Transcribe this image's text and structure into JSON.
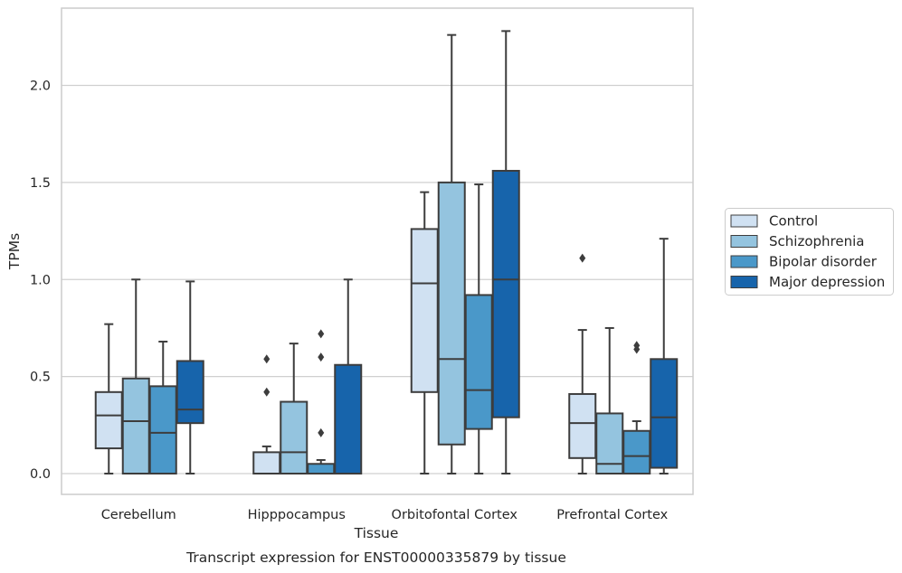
{
  "chart_data": {
    "type": "box",
    "title": "",
    "caption": "Transcript expression for ENST00000335879 by tissue",
    "xlabel": "Tissue",
    "ylabel": "TPMs",
    "ylim": [
      -0.11,
      2.41
    ],
    "yticks": [
      "0.0",
      "0.5",
      "1.0",
      "1.5",
      "2.0"
    ],
    "grid": "horizontal",
    "legend_position": "right",
    "categories": [
      "Cerebellum",
      "Hipppocampus",
      "Orbitofontal Cortex",
      "Prefrontal Cortex"
    ],
    "series": [
      {
        "name": "Control",
        "color": "#d0e1f2",
        "boxes": [
          {
            "whislo": 0.0,
            "q1": 0.13,
            "med": 0.3,
            "q3": 0.42,
            "whishi": 0.77,
            "fliers": []
          },
          {
            "whislo": 0.0,
            "q1": 0.0,
            "med": 0.0,
            "q3": 0.11,
            "whishi": 0.14,
            "fliers": [
              0.42,
              0.59
            ]
          },
          {
            "whislo": 0.0,
            "q1": 0.42,
            "med": 0.98,
            "q3": 1.26,
            "whishi": 1.45,
            "fliers": []
          },
          {
            "whislo": 0.0,
            "q1": 0.08,
            "med": 0.26,
            "q3": 0.41,
            "whishi": 0.74,
            "fliers": [
              1.11
            ]
          }
        ]
      },
      {
        "name": "Schizophrenia",
        "color": "#94c4df",
        "boxes": [
          {
            "whislo": 0.0,
            "q1": 0.0,
            "med": 0.27,
            "q3": 0.49,
            "whishi": 1.0,
            "fliers": []
          },
          {
            "whislo": 0.0,
            "q1": 0.0,
            "med": 0.11,
            "q3": 0.37,
            "whishi": 0.67,
            "fliers": []
          },
          {
            "whislo": 0.0,
            "q1": 0.15,
            "med": 0.59,
            "q3": 1.5,
            "whishi": 2.26,
            "fliers": []
          },
          {
            "whislo": 0.0,
            "q1": 0.0,
            "med": 0.05,
            "q3": 0.31,
            "whishi": 0.75,
            "fliers": []
          }
        ]
      },
      {
        "name": "Bipolar disorder",
        "color": "#4a98c9",
        "boxes": [
          {
            "whislo": 0.0,
            "q1": 0.0,
            "med": 0.21,
            "q3": 0.45,
            "whishi": 0.68,
            "fliers": []
          },
          {
            "whislo": 0.0,
            "q1": 0.0,
            "med": 0.0,
            "q3": 0.05,
            "whishi": 0.07,
            "fliers": [
              0.21,
              0.6,
              0.72
            ]
          },
          {
            "whislo": 0.0,
            "q1": 0.23,
            "med": 0.43,
            "q3": 0.92,
            "whishi": 1.49,
            "fliers": []
          },
          {
            "whislo": 0.0,
            "q1": 0.0,
            "med": 0.09,
            "q3": 0.22,
            "whishi": 0.27,
            "fliers": [
              0.64,
              0.66
            ]
          }
        ]
      },
      {
        "name": "Major depression",
        "color": "#1764ab",
        "boxes": [
          {
            "whislo": 0.0,
            "q1": 0.26,
            "med": 0.33,
            "q3": 0.58,
            "whishi": 0.99,
            "fliers": []
          },
          {
            "whislo": 0.0,
            "q1": 0.0,
            "med": 0.0,
            "q3": 0.56,
            "whishi": 1.0,
            "fliers": []
          },
          {
            "whislo": 0.0,
            "q1": 0.29,
            "med": 1.0,
            "q3": 1.56,
            "whishi": 2.28,
            "fliers": []
          },
          {
            "whislo": 0.0,
            "q1": 0.03,
            "med": 0.29,
            "q3": 0.59,
            "whishi": 1.21,
            "fliers": []
          }
        ]
      }
    ]
  }
}
